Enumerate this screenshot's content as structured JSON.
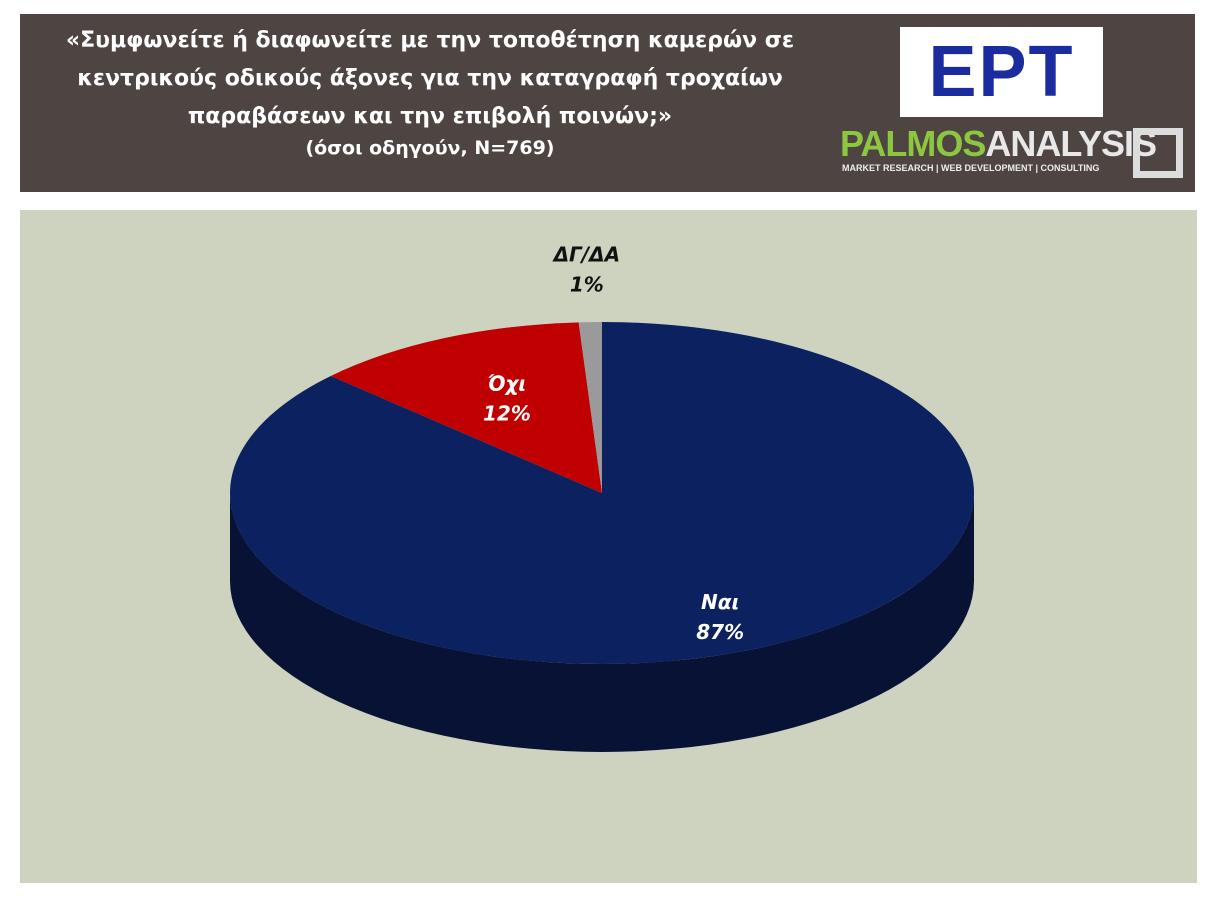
{
  "chart_data": {
    "type": "pie3d",
    "title": "«Συμφωνείτε ή διαφωνείτε με την τοποθέτηση καμερών σε κεντρικούς οδικούς άξονες για την καταγραφή τροχαίων παραβάσεων και την επιβολή ποινών;»",
    "subtitle": "(όσοι οδηγούν, N=769)",
    "categories": [
      "Ναι",
      "Όχι",
      "ΔΓ/ΔΑ"
    ],
    "values": [
      87,
      12,
      1
    ],
    "value_labels": [
      "87%",
      "12%",
      "1%"
    ],
    "colors": [
      "#0c2160",
      "#c00000",
      "#9a9a9a"
    ],
    "label_colors": [
      "#ffffff",
      "#ffffff",
      "#111111"
    ]
  },
  "logos": {
    "broadcaster": "ΕΡΤ",
    "brand_first": "PALMOS",
    "brand_second": "ANALYSIS",
    "tagline": "MARKET RESEARCH | WEB DEVELOPMENT | CONSULTING"
  }
}
